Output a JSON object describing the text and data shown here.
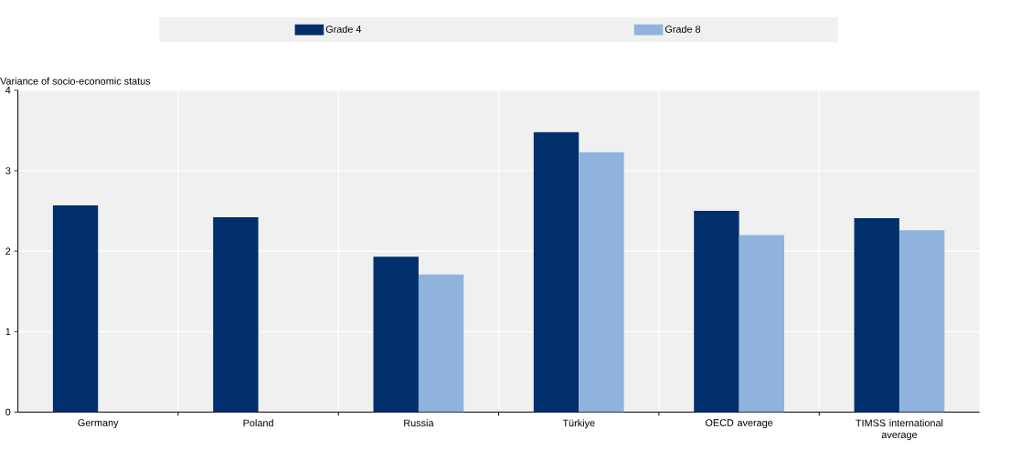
{
  "chart_data": {
    "type": "bar",
    "categories": [
      "Germany",
      "Poland",
      "Russia",
      "Türkiye",
      "OECD average",
      "TIMSS international average"
    ],
    "ylabel": "Variance of socio-economic status",
    "series": [
      {
        "name": "Grade 4",
        "color": "#002f6c",
        "values": [
          2.57,
          2.42,
          1.93,
          3.48,
          2.5,
          2.41
        ]
      },
      {
        "name": "Grade 8",
        "color": "#8fb3dc",
        "values": [
          null,
          null,
          1.71,
          3.23,
          2.2,
          2.26
        ]
      }
    ],
    "ylim": [
      0,
      4
    ],
    "yticks": [
      0,
      1,
      2,
      3,
      4
    ],
    "grid": true,
    "legend": "top"
  }
}
